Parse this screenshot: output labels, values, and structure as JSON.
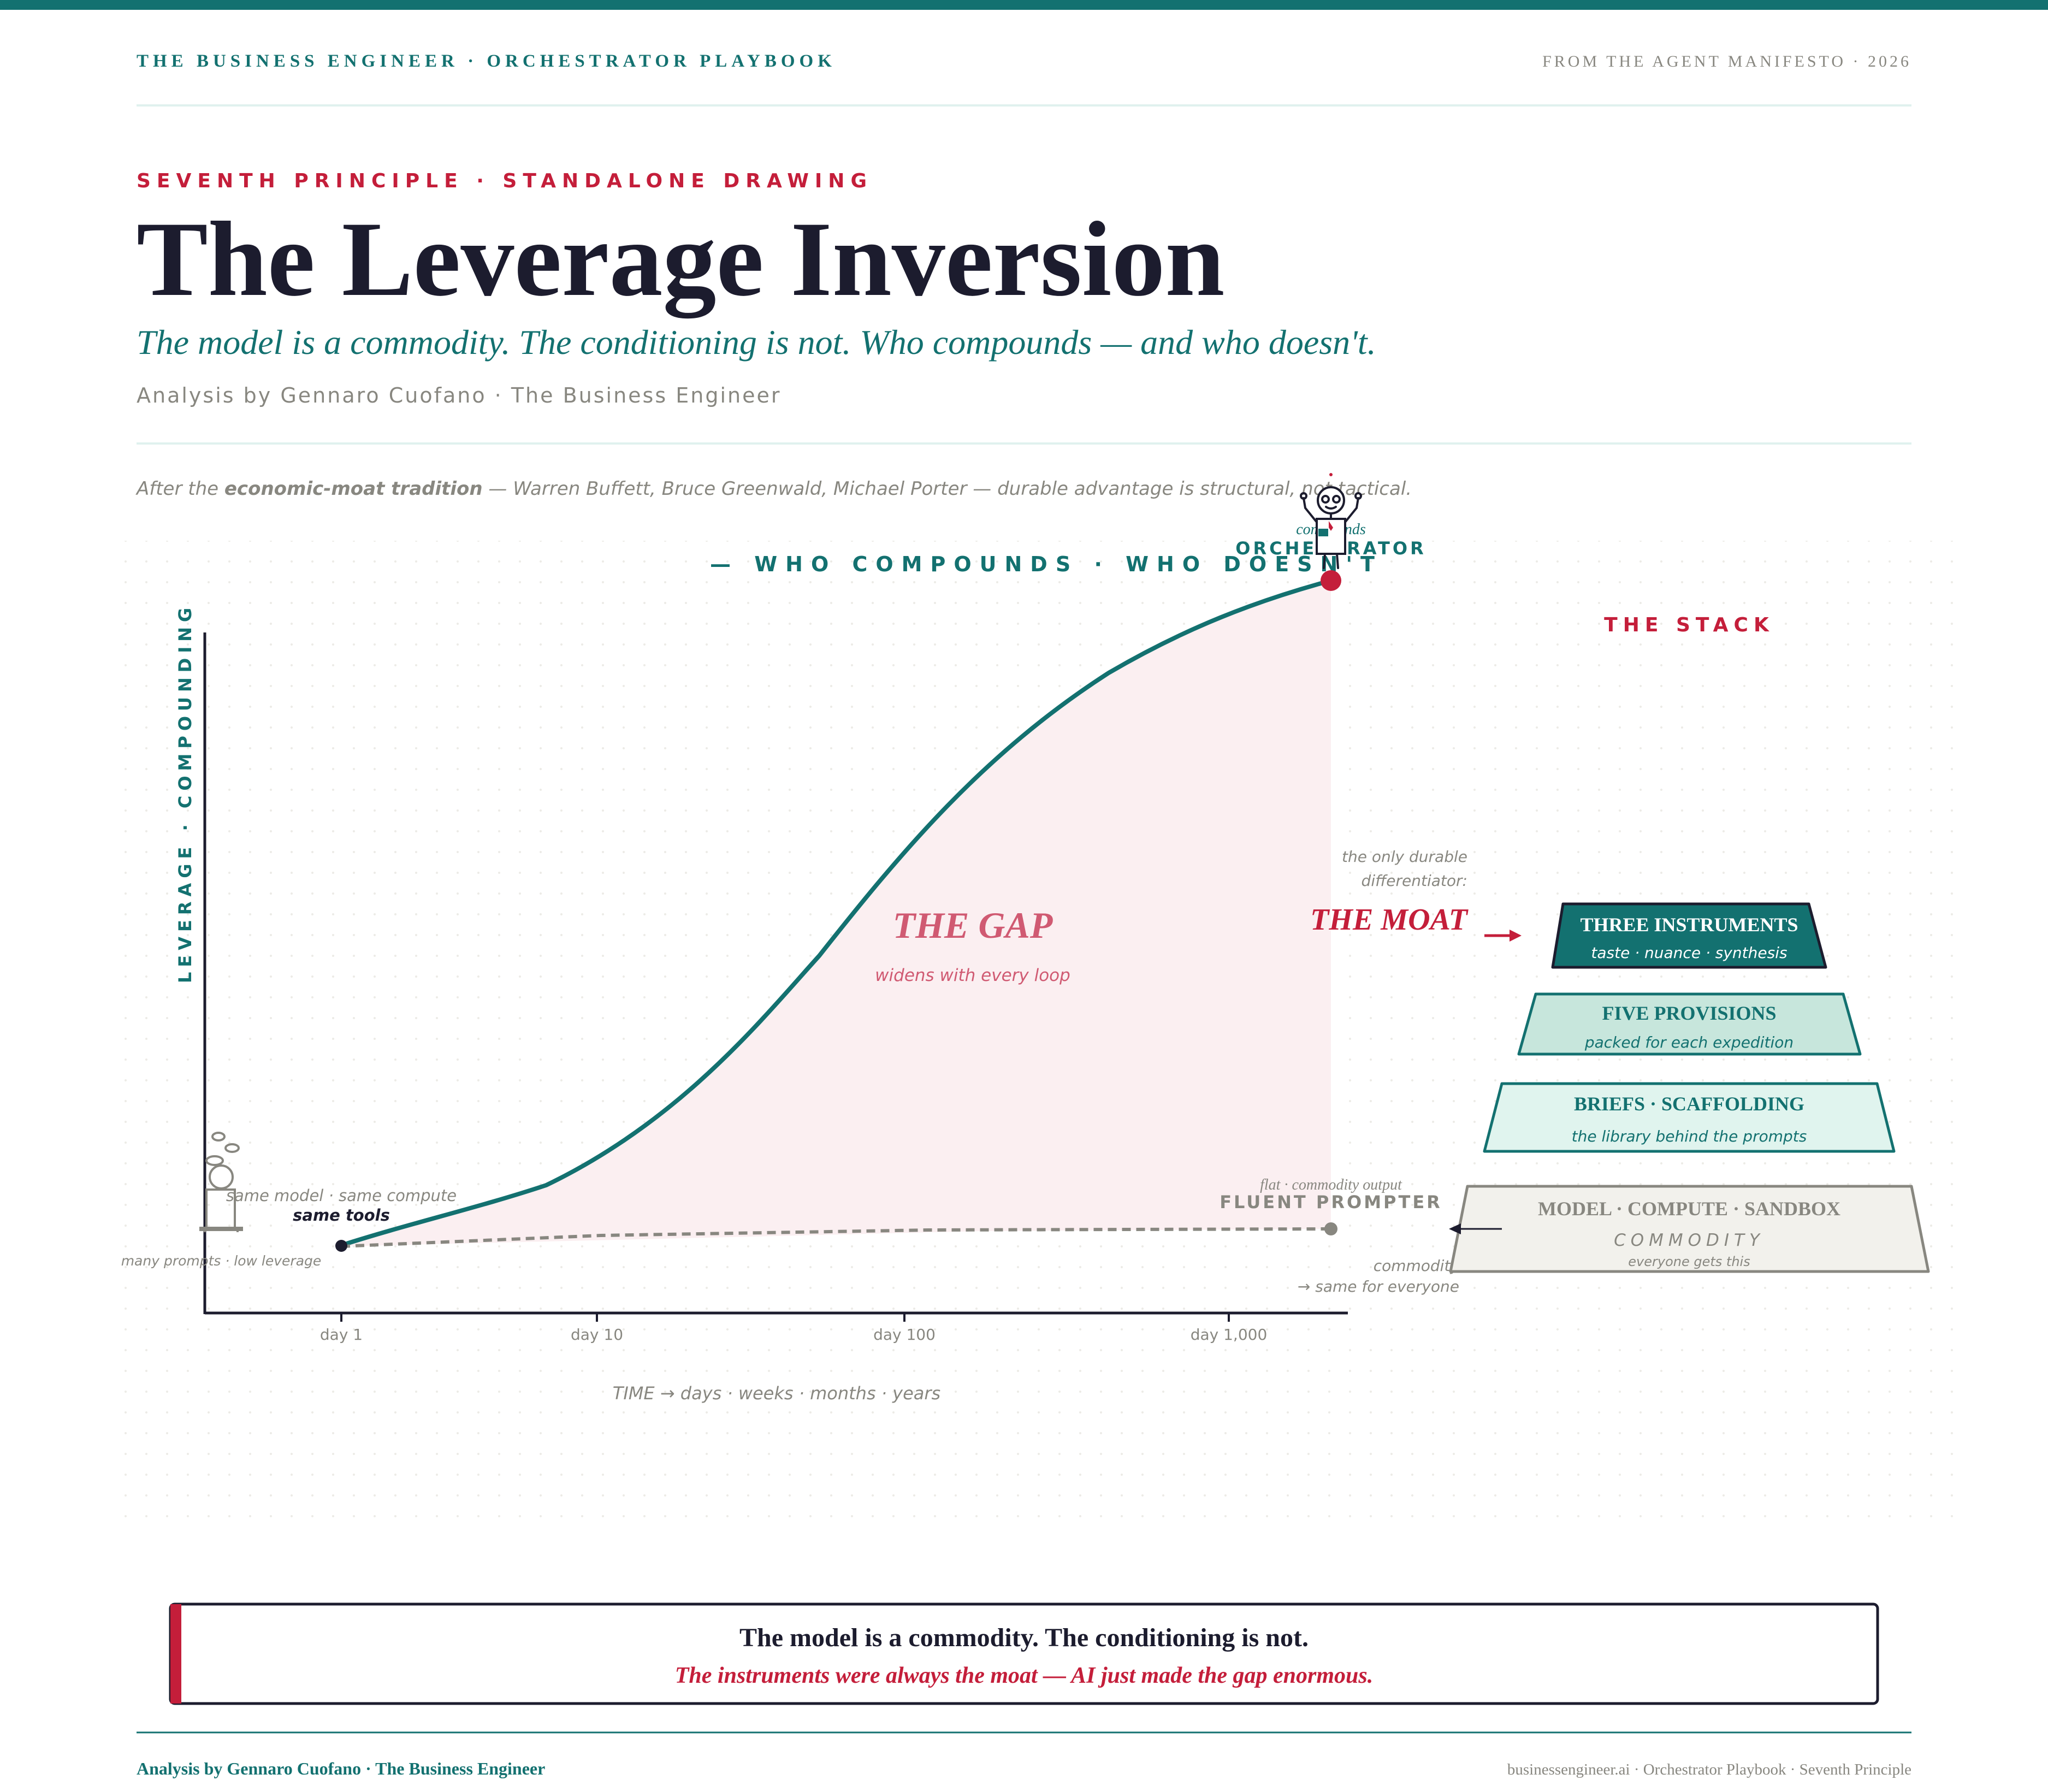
{
  "header": {
    "brand": "THE BUSINESS ENGINEER · ORCHESTRATOR PLAYBOOK",
    "source": "FROM THE AGENT MANIFESTO · 2026"
  },
  "hero": {
    "kicker": "SEVENTH PRINCIPLE · STANDALONE DRAWING",
    "title": "The Leverage Inversion",
    "subtitle": "The model is a commodity. The conditioning is not. Who compounds — and who doesn't.",
    "byline": "Analysis by Gennaro Cuofano · The Business Engineer"
  },
  "attribution": {
    "prefix": "After the ",
    "emphasis": "economic-moat tradition",
    "suffix": " — Warren Buffett, Bruce Greenwald, Michael Porter — durable advantage is structural, not tactical."
  },
  "diagram": {
    "banner": "— WHO COMPOUNDS · WHO DOESN'T",
    "y_axis_label": "LEVERAGE · COMPOUNDING",
    "x_axis_label": "TIME → days · weeks · months · years",
    "x_ticks": [
      "day 1",
      "day 10",
      "day 100",
      "day 1,000"
    ],
    "start": {
      "line1": "same model · same compute",
      "line2": "same tools",
      "figure_caption": "many prompts · low leverage"
    },
    "orchestrator": {
      "note": "compounds",
      "label": "ORCHESTRATOR"
    },
    "prompter": {
      "note": "flat · commodity output",
      "label": "FLUENT PROMPTER",
      "sub1": "commodity",
      "sub2": "→ same for everyone"
    },
    "gap": {
      "title": "THE GAP",
      "caption": "widens with every loop"
    },
    "moat": {
      "lead1": "the only durable",
      "lead2": "differentiator:",
      "label": "THE MOAT"
    }
  },
  "stack": {
    "title": "THE STACK",
    "layers": [
      {
        "title": "THREE INSTRUMENTS",
        "subtitle": "taste · nuance · synthesis"
      },
      {
        "title": "FIVE PROVISIONS",
        "subtitle": "packed for each expedition"
      },
      {
        "title": "BRIEFS · SCAFFOLDING",
        "subtitle": "the library behind the prompts"
      },
      {
        "title": "MODEL · COMPUTE · SANDBOX",
        "subtitle": "COMMODITY",
        "note": "everyone gets this"
      }
    ]
  },
  "callout": {
    "line1": "The model is a commodity. The conditioning is not.",
    "line2": "The instruments were always the moat — AI just made the gap enormous."
  },
  "footer": {
    "left": "Analysis by Gennaro Cuofano · The Business Engineer",
    "right": "businessengineer.ai · Orchestrator Playbook · Seventh Principle"
  },
  "colors": {
    "teal": "#137170",
    "crimson": "#C41E3A",
    "ink": "#1C1C2E",
    "grey": "#888780",
    "gap_fill": "#FBEFF1",
    "layer_light": "#C7E6DC",
    "layer_lighter": "#E0F4EE",
    "layer_commodity": "#F2F1EC"
  }
}
